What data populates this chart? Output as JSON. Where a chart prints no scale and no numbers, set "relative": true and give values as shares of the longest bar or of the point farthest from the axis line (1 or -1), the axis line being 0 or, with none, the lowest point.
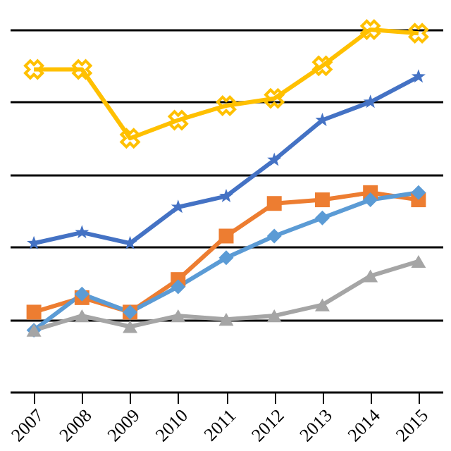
{
  "chart_data": {
    "type": "line",
    "relative": true,
    "grid": "y",
    "legend": false,
    "categories": [
      "2007",
      "2008",
      "2009",
      "2010",
      "2011",
      "2012",
      "2013",
      "2014",
      "2015"
    ],
    "series": [
      {
        "color": "#ffc000",
        "marker": "cross",
        "values": [
          0.89,
          0.89,
          0.7,
          0.75,
          0.79,
          0.81,
          0.9,
          1.0,
          0.99
        ]
      },
      {
        "color": "#4472c4",
        "marker": "star",
        "values": [
          0.41,
          0.44,
          0.41,
          0.51,
          0.54,
          0.64,
          0.75,
          0.8,
          0.87
        ]
      },
      {
        "color": "#ed7d31",
        "marker": "square",
        "values": [
          0.22,
          0.26,
          0.22,
          0.31,
          0.43,
          0.52,
          0.53,
          0.55,
          0.53
        ]
      },
      {
        "color": "#5b9bd5",
        "marker": "diamond",
        "values": [
          0.17,
          0.27,
          0.22,
          0.29,
          0.37,
          0.43,
          0.48,
          0.53,
          0.55
        ]
      },
      {
        "color": "#a5a5a5",
        "marker": "triangle",
        "values": [
          0.17,
          0.21,
          0.18,
          0.21,
          0.2,
          0.21,
          0.24,
          0.32,
          0.36
        ]
      }
    ]
  }
}
